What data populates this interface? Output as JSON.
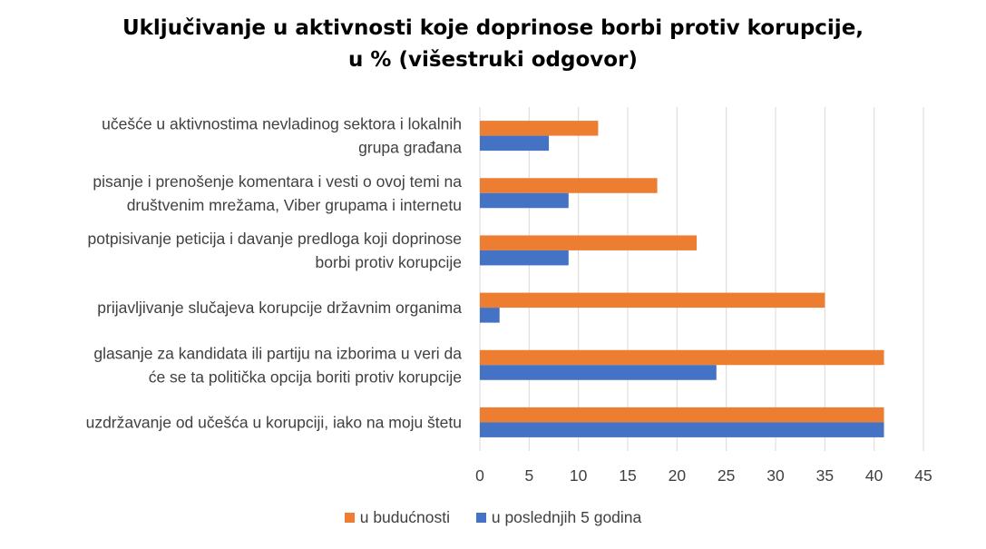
{
  "chart_data": {
    "type": "bar",
    "orientation": "horizontal",
    "title_lines": [
      "Uključivanje u aktivnosti koje doprinose borbi protiv korupcije,",
      "u % (višestruki odgovor)"
    ],
    "categories": [
      [
        "učešće u aktivnostima nevladinog sektora i lokalnih",
        "grupa građana"
      ],
      [
        "pisanje i prenošenje komentara i vesti o ovoj temi na",
        "društvenim mrežama, Viber grupama i internetu"
      ],
      [
        "potpisivanje peticija i davanje predloga koji doprinose",
        "borbi protiv korupcije"
      ],
      [
        "prijavljivanje slučajeva korupcije državnim organima"
      ],
      [
        "glasanje za kandidata ili partiju na izborima u veri da",
        "će se ta politička opcija boriti protiv korupcije"
      ],
      [
        "uzdržavanje od učešća u korupciji, iako na moju štetu"
      ]
    ],
    "series": [
      {
        "name": "u budućnosti",
        "color": "#ED7D31",
        "values": [
          12,
          18,
          22,
          35,
          41,
          41
        ]
      },
      {
        "name": "u poslednjih 5 godina",
        "color": "#4472C4",
        "values": [
          7,
          9,
          9,
          2,
          24,
          41
        ]
      }
    ],
    "xlim": [
      0,
      45
    ],
    "xticks": [
      0,
      5,
      10,
      15,
      20,
      25,
      30,
      35,
      40,
      45
    ],
    "grid": true,
    "legend_position": "bottom"
  }
}
